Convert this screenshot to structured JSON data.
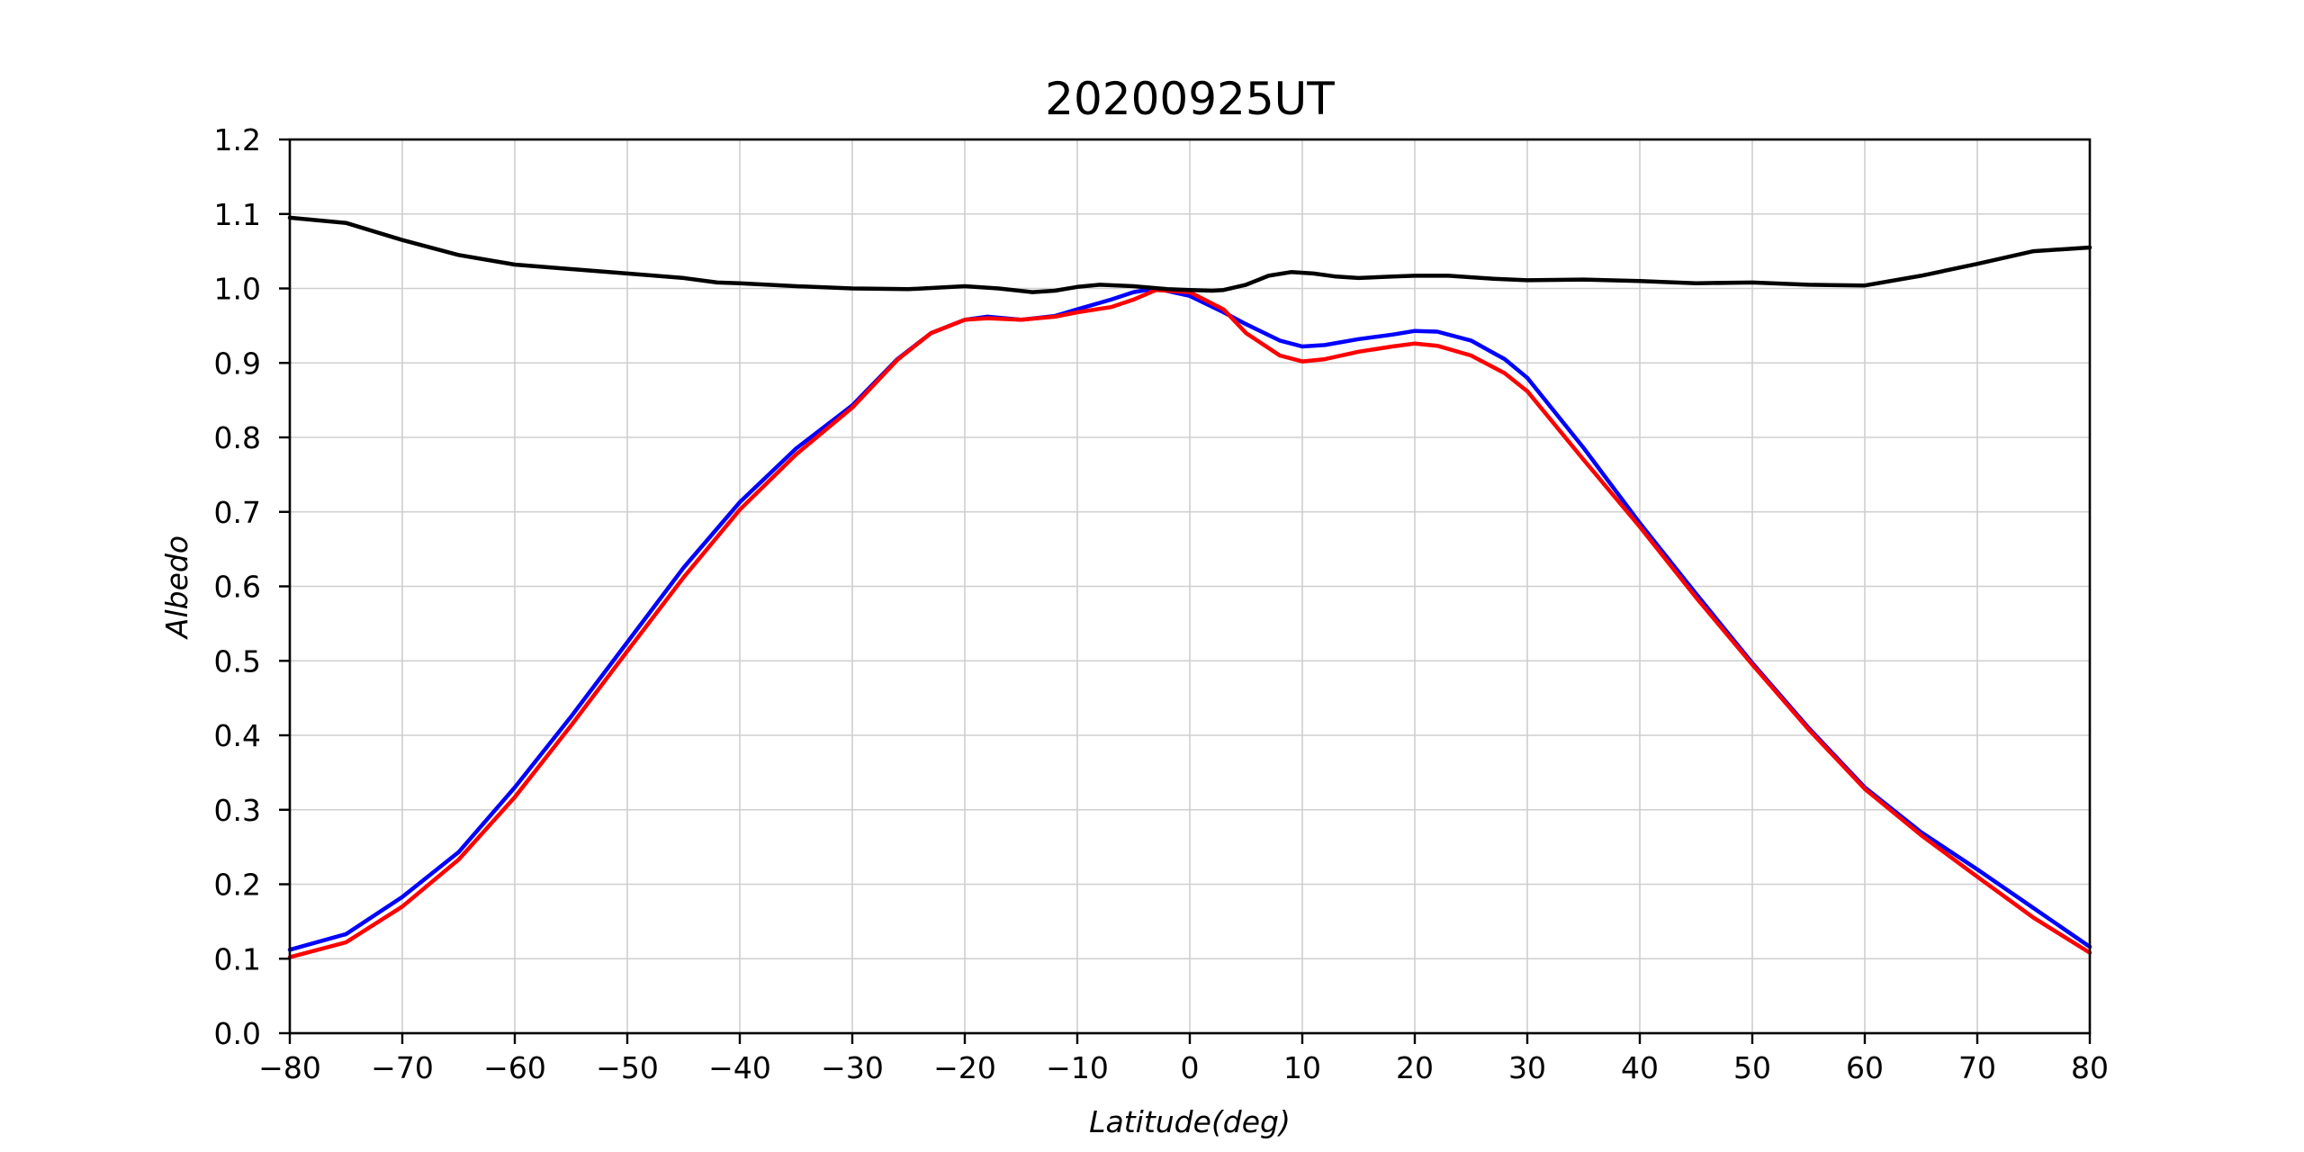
{
  "chart_data": {
    "type": "line",
    "title": "20200925UT",
    "xlabel_main": "Latitude",
    "xlabel_unit": "(deg)",
    "ylabel": "Albedo",
    "xlim": [
      -80,
      80
    ],
    "ylim": [
      0.0,
      1.2
    ],
    "grid": true,
    "xticks": [
      -80,
      -70,
      -60,
      -50,
      -40,
      -30,
      -20,
      -10,
      0,
      10,
      20,
      30,
      40,
      50,
      60,
      70,
      80
    ],
    "xtick_labels": [
      "−80",
      "−70",
      "−60",
      "−50",
      "−40",
      "−30",
      "−20",
      "−10",
      "0",
      "10",
      "20",
      "30",
      "40",
      "50",
      "60",
      "70",
      "80"
    ],
    "yticks": [
      0.0,
      0.1,
      0.2,
      0.3,
      0.4,
      0.5,
      0.6,
      0.7,
      0.8,
      0.9,
      1.0,
      1.1,
      1.2
    ],
    "ytick_labels": [
      "0.0",
      "0.1",
      "0.2",
      "0.3",
      "0.4",
      "0.5",
      "0.6",
      "0.7",
      "0.8",
      "0.9",
      "1.0",
      "1.1",
      "1.2"
    ],
    "series": [
      {
        "color": "#0000ff",
        "x": [
          -80,
          -75,
          -70,
          -65,
          -60,
          -55,
          -50,
          -45,
          -40,
          -35,
          -30,
          -26,
          -23,
          -20,
          -18,
          -15,
          -12,
          -10,
          -7,
          -5,
          -3,
          0,
          3,
          5,
          8,
          10,
          12,
          15,
          18,
          20,
          22,
          25,
          28,
          30,
          35,
          40,
          45,
          50,
          55,
          60,
          65,
          70,
          75,
          80
        ],
        "y": [
          0.112,
          0.133,
          0.183,
          0.243,
          0.33,
          0.425,
          0.525,
          0.625,
          0.713,
          0.785,
          0.843,
          0.905,
          0.94,
          0.958,
          0.962,
          0.958,
          0.963,
          0.972,
          0.985,
          0.995,
          1.0,
          0.99,
          0.968,
          0.952,
          0.93,
          0.922,
          0.924,
          0.932,
          0.938,
          0.943,
          0.942,
          0.93,
          0.905,
          0.88,
          0.786,
          0.685,
          0.59,
          0.497,
          0.41,
          0.33,
          0.27,
          0.22,
          0.168,
          0.116
        ]
      },
      {
        "color": "#ff0000",
        "x": [
          -80,
          -75,
          -70,
          -65,
          -60,
          -55,
          -50,
          -45,
          -40,
          -35,
          -30,
          -26,
          -23,
          -20,
          -18,
          -15,
          -12,
          -10,
          -7,
          -5,
          -3,
          0,
          3,
          5,
          8,
          10,
          12,
          15,
          18,
          20,
          22,
          25,
          28,
          30,
          35,
          40,
          45,
          50,
          55,
          60,
          65,
          70,
          75,
          80
        ],
        "y": [
          0.102,
          0.122,
          0.17,
          0.233,
          0.317,
          0.413,
          0.513,
          0.612,
          0.703,
          0.777,
          0.84,
          0.904,
          0.94,
          0.958,
          0.96,
          0.958,
          0.962,
          0.968,
          0.975,
          0.985,
          0.998,
          0.995,
          0.972,
          0.94,
          0.91,
          0.902,
          0.905,
          0.915,
          0.922,
          0.926,
          0.923,
          0.91,
          0.886,
          0.862,
          0.77,
          0.68,
          0.585,
          0.495,
          0.408,
          0.328,
          0.266,
          0.21,
          0.155,
          0.108
        ]
      },
      {
        "color": "#000000",
        "x": [
          -80,
          -75,
          -70,
          -65,
          -60,
          -55,
          -50,
          -45,
          -42,
          -40,
          -35,
          -30,
          -25,
          -20,
          -17,
          -14,
          -12,
          -10,
          -8,
          -5,
          -2,
          0,
          2,
          3,
          5,
          7,
          9,
          11,
          13,
          15,
          18,
          20,
          23,
          27,
          30,
          35,
          40,
          45,
          50,
          55,
          60,
          65,
          70,
          75,
          80
        ],
        "y": [
          1.095,
          1.088,
          1.065,
          1.045,
          1.032,
          1.026,
          1.02,
          1.014,
          1.008,
          1.007,
          1.003,
          1.0,
          0.999,
          1.003,
          1.0,
          0.995,
          0.997,
          1.002,
          1.005,
          1.003,
          0.999,
          0.998,
          0.997,
          0.998,
          1.005,
          1.017,
          1.022,
          1.02,
          1.016,
          1.014,
          1.016,
          1.017,
          1.017,
          1.013,
          1.011,
          1.012,
          1.01,
          1.007,
          1.008,
          1.005,
          1.004,
          1.017,
          1.033,
          1.05,
          1.055
        ]
      }
    ]
  }
}
